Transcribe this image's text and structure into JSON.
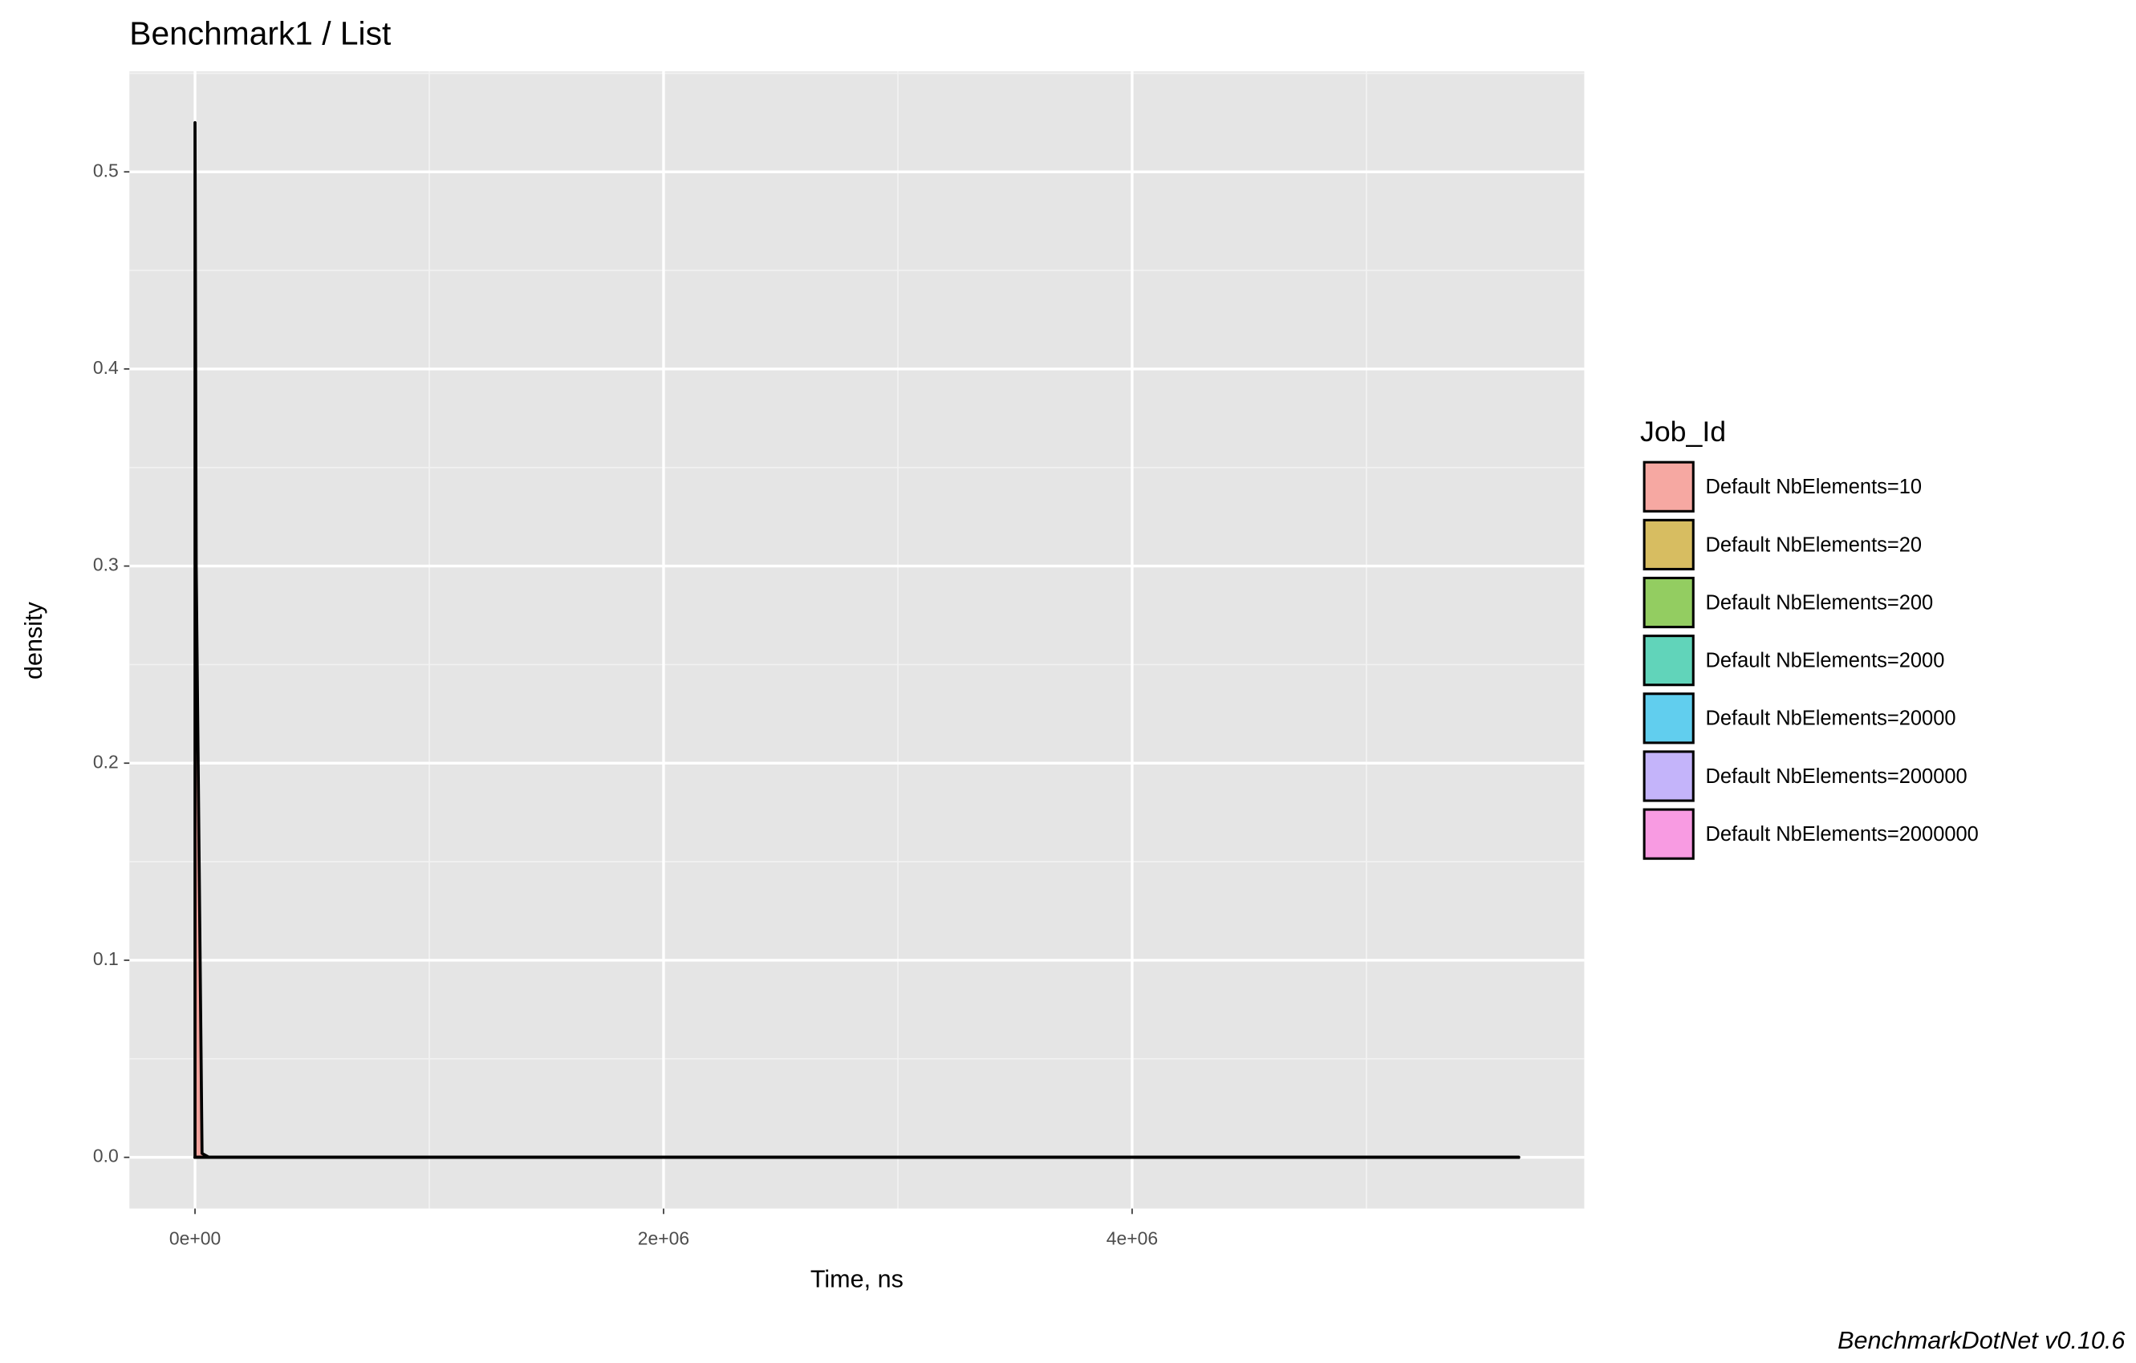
{
  "chart_data": {
    "type": "density",
    "title": "Benchmark1 / List",
    "xlabel": "Time, ns",
    "ylabel": "density",
    "caption": "BenchmarkDotNet v0.10.6",
    "legend_title": "Job_Id",
    "legend": "right",
    "grid": true,
    "x": [
      0,
      5000,
      30000,
      60000,
      1000000,
      5650000
    ],
    "series": [
      {
        "name": "Default NbElements=10",
        "color": "#F8766D",
        "values": [
          0.525,
          0.3,
          0.002,
          0,
          0,
          0
        ]
      },
      {
        "name": "Default NbElements=20",
        "color": "#C49A00",
        "values": [
          0,
          0,
          0,
          0,
          0,
          0
        ]
      },
      {
        "name": "Default NbElements=200",
        "color": "#53B400",
        "values": [
          0,
          0,
          0,
          0,
          0,
          0
        ]
      },
      {
        "name": "Default NbElements=2000",
        "color": "#00C094",
        "values": [
          0,
          0,
          0,
          0,
          0,
          0
        ]
      },
      {
        "name": "Default NbElements=20000",
        "color": "#00B6EB",
        "values": [
          0,
          0,
          0,
          0,
          0,
          0
        ]
      },
      {
        "name": "Default NbElements=200000",
        "color": "#A58AFF",
        "values": [
          0,
          0,
          0,
          0,
          0,
          0
        ]
      },
      {
        "name": "Default NbElements=2000000",
        "color": "#FB61D7",
        "values": [
          0,
          0,
          0,
          0,
          0,
          0
        ]
      }
    ],
    "xlim": [
      -280000,
      5930000
    ],
    "ylim": [
      -0.026,
      0.551
    ],
    "xticks": [
      {
        "value": 0,
        "label": "0e+00"
      },
      {
        "value": 2000000,
        "label": "2e+06"
      },
      {
        "value": 4000000,
        "label": "4e+06"
      }
    ],
    "yticks": [
      {
        "value": 0,
        "label": "0.0"
      },
      0.1,
      0.2,
      0.3,
      0.4,
      0.5
    ]
  }
}
